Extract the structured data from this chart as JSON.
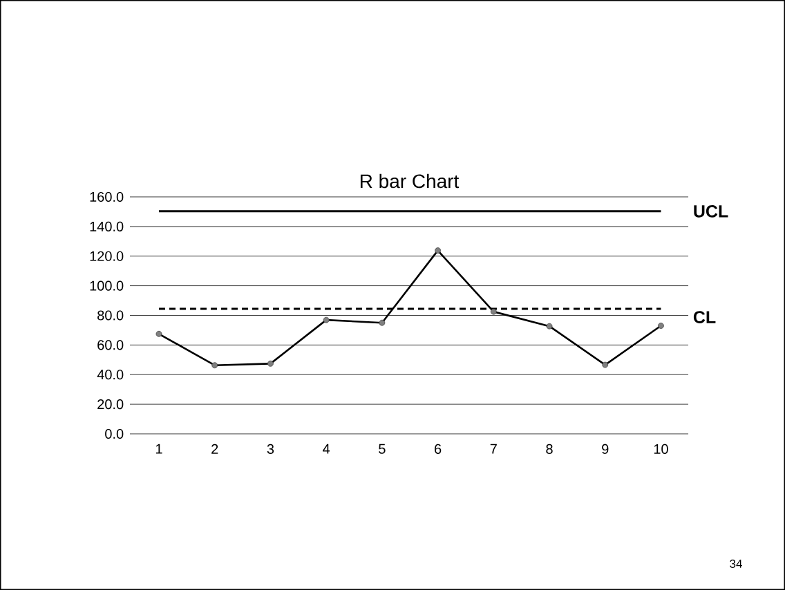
{
  "chart_data": {
    "type": "line",
    "title": "R bar Chart",
    "categories": [
      "1",
      "2",
      "3",
      "4",
      "5",
      "6",
      "7",
      "8",
      "9",
      "10"
    ],
    "series": [
      {
        "color": "#000000",
        "values": [
          67.5,
          46.3,
          47.4,
          76.9,
          75.0,
          123.8,
          82.5,
          72.7,
          46.6,
          73.0
        ]
      }
    ],
    "ylim": [
      0,
      160
    ],
    "yticks": [
      {
        "value": 0,
        "label": "0.0"
      },
      {
        "value": 20,
        "label": "20.0"
      },
      {
        "value": 40,
        "label": "40.0"
      },
      {
        "value": 60,
        "label": "60.0"
      },
      {
        "value": 80,
        "label": "80.0"
      },
      {
        "value": 100,
        "label": "100.0"
      },
      {
        "value": 120,
        "label": "120.0"
      },
      {
        "value": 140,
        "label": "140.0"
      },
      {
        "value": 160,
        "label": "160.0"
      }
    ],
    "grid": "y",
    "marker": "circle",
    "line_style": "solid",
    "ref_lines": [
      {
        "axis": "y",
        "value": 150.3,
        "label": "UCL",
        "color": "#000000",
        "line_style": "solid"
      },
      {
        "axis": "y",
        "value": 84.4,
        "label": "CL",
        "color": "#000000",
        "line_style": "dashed"
      }
    ],
    "annotations": [
      "34"
    ]
  }
}
